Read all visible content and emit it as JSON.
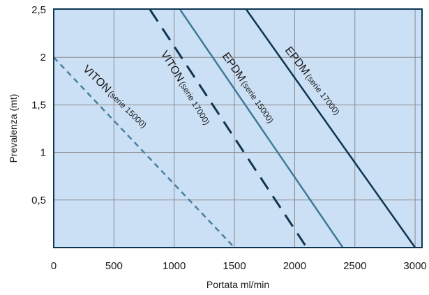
{
  "chart_data": {
    "type": "line",
    "title": "",
    "xlabel": "Portata ml/min",
    "ylabel": "Prevalenza (mt)",
    "xlim": [
      0,
      3000
    ],
    "ylim": [
      0,
      2.5
    ],
    "x_ticks": [
      "0",
      "500",
      "1000",
      "1500",
      "2000",
      "2500",
      "3000"
    ],
    "y_ticks": [
      "0,5",
      "1",
      "1,5",
      "2",
      "2,5"
    ],
    "grid": true,
    "background": "#cce0f5",
    "series": [
      {
        "label_main": "VITON",
        "label_sub": "(serie 15000)",
        "color": "#4a7f9f",
        "dash": "short",
        "x": [
          0,
          1500
        ],
        "y": [
          2.0,
          0.0
        ]
      },
      {
        "label_main": "VITON",
        "label_sub": "(serie 17000)",
        "color": "#0f3550",
        "dash": "long",
        "x": [
          800,
          2100
        ],
        "y": [
          2.5,
          0.0
        ]
      },
      {
        "label_main": "EPDM",
        "label_sub": "(serie 15000)",
        "color": "#3f7a98",
        "dash": "solid",
        "x": [
          1050,
          2400
        ],
        "y": [
          2.5,
          0.0
        ]
      },
      {
        "label_main": "EPDM",
        "label_sub": "(serie 17000)",
        "color": "#0d3552",
        "dash": "solid",
        "x": [
          1600,
          3000
        ],
        "y": [
          2.5,
          0.0
        ]
      }
    ]
  }
}
